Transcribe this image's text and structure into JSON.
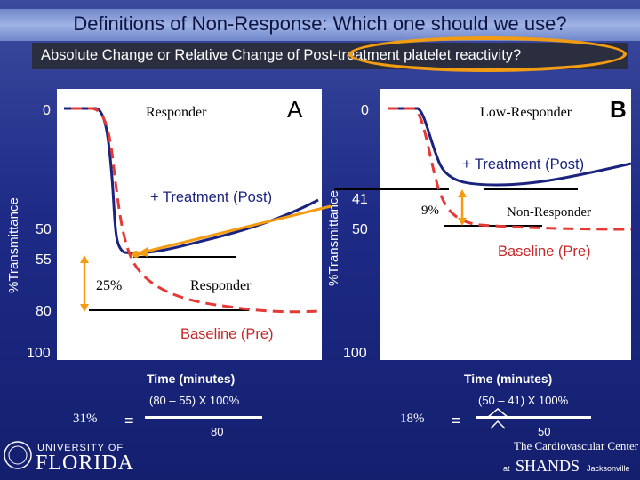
{
  "title": "Definitions of Non-Response: Which one should we use?",
  "subtitle": "Absolute Change or Relative Change of Post-treatment platelet reactivity?",
  "panelA": {
    "letter": "A",
    "title": "Responder",
    "ylabel": "%Transmittance",
    "ticks": [
      "0",
      "50",
      "55",
      "80",
      "100"
    ],
    "post_label": "+ Treatment (Post)",
    "pre_label": "Baseline (Pre)",
    "pct_label": "25%",
    "responder_label": "Responder",
    "xlabel": "Time (minutes)",
    "formula_num": "(80 – 55) X 100%",
    "formula_den": "80",
    "result": "31%",
    "equals": "="
  },
  "panelB": {
    "letter": "B",
    "title": "Low-Responder",
    "ylabel": "%Transmittance",
    "ticks": [
      "0",
      "41",
      "50",
      "100"
    ],
    "post_label": "+ Treatment (Post)",
    "pre_label": "Baseline (Pre)",
    "pct_label": "9%",
    "non_responder_label": "Non-Responder",
    "xlabel": "Time (minutes)",
    "formula_num": "(50 – 41) X 100%",
    "formula_den": "50",
    "result": "18%",
    "equals": "="
  },
  "footer": {
    "uf_top": "UNIVERSITY OF",
    "uf_main": "FLORIDA",
    "shands_top": "The Cardiovascular Center",
    "shands_at": "at",
    "shands_main": "SHANDS",
    "shands_city": "Jacksonville"
  },
  "colors": {
    "background": "#1e2b86",
    "post_curve": "#1a237e",
    "pre_curve": "#e53935",
    "accent": "#f39c12"
  }
}
